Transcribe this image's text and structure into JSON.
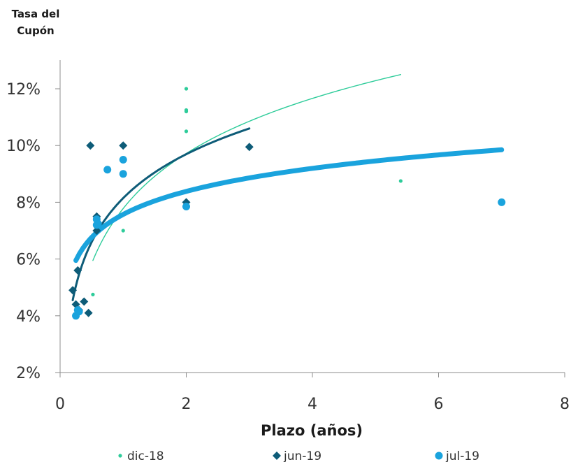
{
  "chart_data": {
    "type": "scatter",
    "ylabel": "Tasa del Cupón",
    "xlabel": "Plazo (años)",
    "xlim": [
      0,
      8
    ],
    "ylim": [
      2,
      13
    ],
    "xticks": [
      0,
      2,
      4,
      6,
      8
    ],
    "xtick_labels": [
      "0",
      "2",
      "4",
      "6",
      "8"
    ],
    "yticks": [
      2,
      4,
      6,
      8,
      10,
      12
    ],
    "ytick_labels": [
      "2%",
      "4%",
      "6%",
      "8%",
      "10%",
      "12%"
    ],
    "grid": false,
    "legend_position": "bottom",
    "series": [
      {
        "name": "dic-18",
        "marker": "dot",
        "color": "#2ecc9a",
        "points": [
          [
            0.52,
            4.75
          ],
          [
            0.6,
            7.0
          ],
          [
            1.0,
            7.0
          ],
          [
            2.0,
            12.0
          ],
          [
            2.0,
            11.25
          ],
          [
            2.0,
            11.2
          ],
          [
            2.0,
            10.5
          ],
          [
            5.4,
            8.75
          ]
        ],
        "trendline": {
          "type": "log",
          "x_range": [
            0.52,
            5.4
          ],
          "y_start": 5.95,
          "y_end": 12.5
        }
      },
      {
        "name": "jun-19",
        "marker": "diamond",
        "color": "#0e5c78",
        "points": [
          [
            0.2,
            4.9
          ],
          [
            0.25,
            4.4
          ],
          [
            0.28,
            5.6
          ],
          [
            0.3,
            4.2
          ],
          [
            0.38,
            4.5
          ],
          [
            0.45,
            4.1
          ],
          [
            0.48,
            10.0
          ],
          [
            0.58,
            7.5
          ],
          [
            0.58,
            7.0
          ],
          [
            1.0,
            10.0
          ],
          [
            2.0,
            8.0
          ],
          [
            3.0,
            9.95
          ]
        ],
        "trendline": {
          "type": "log",
          "x_range": [
            0.2,
            3.0
          ],
          "y_start": 4.55,
          "y_end": 10.6
        }
      },
      {
        "name": "jul-19",
        "marker": "circle",
        "color": "#1aa3dd",
        "points": [
          [
            0.25,
            4.0
          ],
          [
            0.28,
            4.2
          ],
          [
            0.3,
            4.15
          ],
          [
            0.75,
            9.15
          ],
          [
            0.58,
            7.4
          ],
          [
            0.58,
            7.2
          ],
          [
            0.6,
            7.25
          ],
          [
            1.0,
            9.5
          ],
          [
            1.0,
            9.0
          ],
          [
            2.0,
            7.85
          ],
          [
            7.0,
            8.0
          ]
        ],
        "trendline": {
          "type": "log",
          "x_range": [
            0.25,
            7.0
          ],
          "y_start": 5.95,
          "y_end": 9.85
        }
      }
    ]
  }
}
